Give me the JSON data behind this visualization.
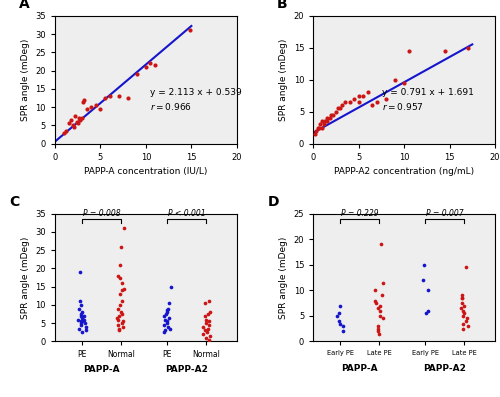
{
  "panel_A": {
    "scatter_x": [
      1.0,
      1.2,
      1.5,
      1.8,
      2.0,
      2.1,
      2.2,
      2.4,
      2.5,
      2.6,
      2.8,
      3.0,
      3.1,
      3.2,
      3.5,
      4.0,
      4.5,
      5.0,
      5.5,
      6.0,
      7.0,
      8.0,
      9.0,
      10.0,
      10.5,
      11.0,
      14.8
    ],
    "scatter_y": [
      2.8,
      3.5,
      5.5,
      6.5,
      5.0,
      4.5,
      7.5,
      6.0,
      5.5,
      7.0,
      6.5,
      7.0,
      11.5,
      12.0,
      9.5,
      10.0,
      10.5,
      9.5,
      12.5,
      13.0,
      13.0,
      12.5,
      19.0,
      21.0,
      22.0,
      21.5,
      31.0
    ],
    "slope": 2.113,
    "intercept": 0.539,
    "equation": "y = 2.113 x + 0.539",
    "r_label": "r = 0.966",
    "xlabel": "PAPP-A concentration (IU/L)",
    "ylabel": "SPR angle (mDeg)",
    "xlim": [
      0,
      20
    ],
    "ylim": [
      0,
      35
    ],
    "xticks": [
      0,
      5,
      10,
      15,
      20
    ],
    "yticks": [
      0,
      5,
      10,
      15,
      20,
      25,
      30,
      35
    ]
  },
  "panel_B": {
    "scatter_x": [
      0.2,
      0.3,
      0.5,
      0.6,
      0.8,
      1.0,
      1.0,
      1.2,
      1.3,
      1.5,
      1.5,
      1.8,
      2.0,
      2.2,
      2.5,
      2.7,
      3.0,
      3.2,
      3.5,
      4.0,
      4.5,
      5.0,
      5.0,
      5.5,
      6.0,
      6.5,
      7.0,
      8.0,
      9.0,
      10.0,
      10.5,
      14.5,
      17.0
    ],
    "scatter_y": [
      1.5,
      2.0,
      2.5,
      2.5,
      3.0,
      2.5,
      3.5,
      3.0,
      3.5,
      3.5,
      4.0,
      4.0,
      4.5,
      4.5,
      5.0,
      5.5,
      5.5,
      6.0,
      6.5,
      6.5,
      7.0,
      6.5,
      7.5,
      7.5,
      8.0,
      6.0,
      6.5,
      7.0,
      10.0,
      9.5,
      14.5,
      14.5,
      15.0
    ],
    "slope": 0.791,
    "intercept": 1.691,
    "equation": "y = 0.791 x + 1.691",
    "r_label": "r = 0.957",
    "xlabel": "PAPP-A2 concentration (ng/mL)",
    "ylabel": "SPR angle (mDeg)",
    "xlim": [
      0,
      20
    ],
    "ylim": [
      0,
      20
    ],
    "xticks": [
      0,
      5,
      10,
      15,
      20
    ],
    "yticks": [
      0,
      5,
      10,
      15,
      20
    ]
  },
  "panel_C": {
    "papp_a_pe": [
      2.5,
      3.0,
      3.5,
      4.0,
      4.5,
      5.0,
      5.0,
      5.5,
      5.5,
      6.0,
      6.0,
      6.5,
      7.0,
      7.0,
      7.5,
      8.0,
      9.0,
      10.0,
      11.0,
      19.0
    ],
    "papp_a_normal": [
      3.0,
      3.5,
      4.0,
      4.5,
      5.0,
      5.5,
      6.0,
      6.5,
      7.0,
      7.5,
      8.0,
      9.0,
      10.0,
      11.0,
      13.0,
      14.0,
      14.5,
      16.0,
      17.5,
      18.0,
      21.0,
      26.0,
      31.0
    ],
    "papp_a2_pe": [
      2.5,
      3.0,
      3.5,
      4.0,
      4.5,
      5.0,
      5.5,
      6.0,
      6.5,
      7.0,
      7.5,
      8.0,
      8.5,
      9.0,
      10.5,
      15.0
    ],
    "papp_a2_normal": [
      0.5,
      1.0,
      1.5,
      2.0,
      2.5,
      3.0,
      3.5,
      4.0,
      4.5,
      5.0,
      5.5,
      6.0,
      7.0,
      7.5,
      8.0,
      10.5,
      11.0
    ],
    "p_label_pappa": "P = 0.008",
    "p_label_pappa2": "P < 0.001",
    "ylabel": "SPR angle (mDeg)",
    "ylim": [
      0,
      35
    ],
    "yticks": [
      0,
      5,
      10,
      15,
      20,
      25,
      30,
      35
    ],
    "pe_color": "#1515CC",
    "normal_color": "#CC1515"
  },
  "panel_D": {
    "pappa_early": [
      2.0,
      3.0,
      3.5,
      4.0,
      5.0,
      5.5,
      7.0
    ],
    "pappa_late": [
      1.5,
      2.0,
      2.5,
      3.0,
      4.5,
      5.0,
      6.0,
      6.5,
      7.0,
      7.5,
      8.0,
      9.0,
      10.0,
      11.5,
      19.0
    ],
    "pappa2_early": [
      5.5,
      6.0,
      10.0,
      12.0,
      15.0
    ],
    "pappa2_late": [
      2.5,
      3.0,
      3.5,
      4.0,
      4.5,
      5.0,
      5.5,
      6.0,
      6.5,
      7.0,
      7.5,
      8.5,
      8.5,
      9.0,
      14.5
    ],
    "p_label_pappa": "P = 0.229",
    "p_label_pappa2": "P = 0.007",
    "ylabel": "SPR angle (mDeg)",
    "ylim": [
      0,
      25
    ],
    "yticks": [
      0,
      5,
      10,
      15,
      20,
      25
    ],
    "early_color": "#1515CC",
    "late_color": "#CC1515"
  },
  "scatter_color": "#CC1515",
  "line_color": "#1515CC",
  "bg_color": "#eeeeee",
  "panel_labels": [
    "A",
    "B",
    "C",
    "D"
  ]
}
